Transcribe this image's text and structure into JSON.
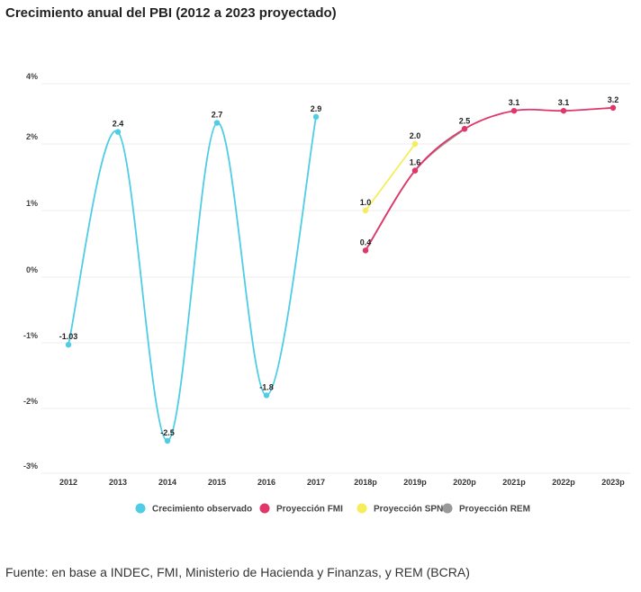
{
  "title": "Crecimiento anual del PBI (2012 a 2023 proyectado)",
  "source": "Fuente:  en base a INDEC, FMI, Ministerio de Hacienda y Finanzas, y REM (BCRA)",
  "chart_data": {
    "type": "line",
    "title": "Crecimiento anual del PBI (2012 a 2023 proyectado)",
    "categories": [
      "2012",
      "2013",
      "2014",
      "2015",
      "2016",
      "2017",
      "2018p",
      "2019p",
      "2020p",
      "2021p",
      "2022p",
      "2023p"
    ],
    "y_ticks": [
      4,
      2,
      1,
      0,
      -1,
      -2,
      -3
    ],
    "y_tick_labels": [
      "4%",
      "2%",
      "1%",
      "0%",
      "-1%",
      "-2%",
      "-3%"
    ],
    "grid": true,
    "legend_position": "bottom",
    "series": [
      {
        "name": "Crecimiento observado",
        "color": "#4ecde4",
        "values": [
          -1.03,
          2.4,
          -2.5,
          2.7,
          -1.8,
          2.9,
          null,
          null,
          null,
          null,
          null,
          null
        ],
        "labels": [
          "-1.03",
          "2.4",
          "-2.5",
          "2.7",
          "-1.8",
          "2.9",
          "",
          "",
          "",
          "",
          "",
          ""
        ]
      },
      {
        "name": "Proyección FMI",
        "color": "#e0366a",
        "values": [
          null,
          null,
          null,
          null,
          null,
          null,
          0.4,
          1.6,
          2.5,
          3.1,
          3.1,
          3.2
        ],
        "labels": [
          "",
          "",
          "",
          "",
          "",
          "",
          "0.4",
          "",
          "",
          "3.1",
          "3.1",
          "3.2"
        ]
      },
      {
        "name": "Proyección SPN",
        "color": "#f5ee5a",
        "values": [
          null,
          null,
          null,
          null,
          null,
          null,
          1.0,
          2.0,
          null,
          null,
          null,
          null
        ],
        "labels": [
          "",
          "",
          "",
          "",
          "",
          "",
          "1.0",
          "2.0",
          "",
          "",
          "",
          ""
        ]
      },
      {
        "name": "Proyección REM",
        "color": "#999999",
        "values": [
          null,
          null,
          null,
          null,
          null,
          null,
          0.4,
          1.6,
          2.5,
          null,
          null,
          null
        ],
        "labels": [
          "",
          "",
          "",
          "",
          "",
          "",
          "",
          "1.6",
          "2.5",
          "",
          "",
          ""
        ]
      }
    ]
  }
}
